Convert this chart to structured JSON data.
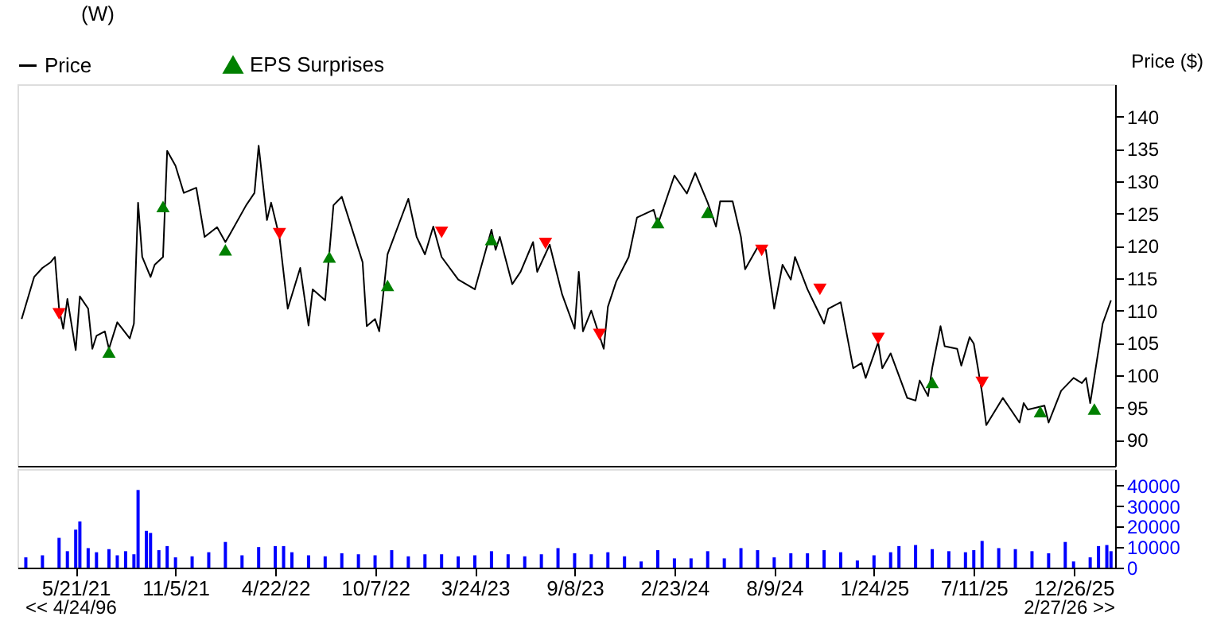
{
  "chart_data": [
    {
      "type": "line",
      "title": "(W)",
      "ylabel": "Price ($)",
      "legend": "top",
      "grid": false,
      "tick_labels": "y",
      "xlim": [
        "2021-02-12",
        "2026-03-06"
      ],
      "ylim": [
        86,
        145
      ],
      "yticks": [
        90,
        95,
        100,
        105,
        110,
        115,
        120,
        125,
        130,
        135,
        140
      ],
      "series": [
        {
          "name": "Price",
          "type": "line",
          "color": "#000000",
          "line_style": "solid",
          "marker": "none",
          "x": [
            "2021-02-19",
            "2021-03-12",
            "2021-03-26",
            "2021-04-09",
            "2021-04-16",
            "2021-04-23",
            "2021-04-30",
            "2021-05-07",
            "2021-05-21",
            "2021-05-28",
            "2021-06-11",
            "2021-06-18",
            "2021-06-25",
            "2021-07-09",
            "2021-07-16",
            "2021-07-30",
            "2021-08-20",
            "2021-08-27",
            "2021-09-03",
            "2021-09-10",
            "2021-09-24",
            "2021-10-01",
            "2021-10-15",
            "2021-10-22",
            "2021-11-05",
            "2021-11-19",
            "2021-12-10",
            "2021-12-24",
            "2022-01-14",
            "2022-01-28",
            "2022-02-04",
            "2022-03-04",
            "2022-03-18",
            "2022-03-25",
            "2022-04-08",
            "2022-04-15",
            "2022-04-29",
            "2022-05-13",
            "2022-06-03",
            "2022-06-17",
            "2022-06-24",
            "2022-07-15",
            "2022-07-29",
            "2022-08-12",
            "2022-09-16",
            "2022-09-23",
            "2022-10-07",
            "2022-10-14",
            "2022-10-28",
            "2022-12-02",
            "2022-12-16",
            "2022-12-30",
            "2023-01-13",
            "2023-01-27",
            "2023-02-24",
            "2023-03-24",
            "2023-04-21",
            "2023-04-28",
            "2023-05-05",
            "2023-05-26",
            "2023-06-09",
            "2023-06-30",
            "2023-07-07",
            "2023-07-28",
            "2023-08-18",
            "2023-09-08",
            "2023-09-15",
            "2023-09-22",
            "2023-10-06",
            "2023-10-27",
            "2023-11-03",
            "2023-11-17",
            "2023-12-08",
            "2023-12-22",
            "2024-01-19",
            "2024-01-26",
            "2024-02-23",
            "2024-03-15",
            "2024-03-29",
            "2024-04-19",
            "2024-05-03",
            "2024-05-10",
            "2024-05-31",
            "2024-06-14",
            "2024-06-21",
            "2024-07-12",
            "2024-07-26",
            "2024-08-09",
            "2024-08-23",
            "2024-09-06",
            "2024-09-13",
            "2024-10-04",
            "2024-11-01",
            "2024-11-08",
            "2024-11-29",
            "2024-12-20",
            "2025-01-03",
            "2025-01-10",
            "2025-01-31",
            "2025-02-07",
            "2025-02-21",
            "2025-03-21",
            "2025-04-04",
            "2025-04-11",
            "2025-04-25",
            "2025-05-02",
            "2025-05-16",
            "2025-05-23",
            "2025-06-13",
            "2025-06-20",
            "2025-07-04",
            "2025-07-11",
            "2025-07-25",
            "2025-08-01",
            "2025-08-29",
            "2025-09-26",
            "2025-10-03",
            "2025-10-10",
            "2025-11-07",
            "2025-11-14",
            "2025-12-05",
            "2025-12-26",
            "2026-01-09",
            "2026-01-16",
            "2026-01-23",
            "2026-02-13",
            "2026-02-27"
          ],
          "values": [
            108.7,
            115.2,
            116.6,
            117.5,
            118.3,
            110.3,
            107.2,
            111.8,
            103.9,
            112.2,
            110.3,
            104.1,
            106.1,
            106.8,
            104.1,
            108.2,
            105.7,
            108.0,
            126.7,
            118.3,
            115.2,
            117.1,
            118.3,
            134.7,
            132.4,
            128.2,
            129.0,
            121.4,
            122.9,
            120.6,
            121.7,
            126.3,
            128.2,
            135.5,
            124.0,
            126.7,
            121.4,
            110.3,
            116.6,
            107.7,
            113.3,
            111.6,
            126.3,
            127.6,
            117.5,
            107.6,
            108.7,
            106.8,
            118.7,
            127.3,
            121.4,
            118.7,
            123.0,
            118.3,
            114.8,
            113.3,
            122.5,
            119.4,
            121.4,
            114.1,
            116.0,
            120.6,
            116.0,
            120.2,
            112.5,
            107.2,
            116.0,
            106.8,
            110.0,
            104.1,
            110.6,
            114.5,
            118.3,
            124.4,
            125.6,
            123.3,
            130.9,
            128.1,
            131.3,
            126.7,
            123.0,
            126.9,
            126.9,
            121.4,
            116.4,
            119.8,
            119.4,
            110.3,
            117.1,
            114.8,
            118.3,
            113.3,
            108.0,
            110.3,
            111.3,
            101.1,
            101.9,
            99.6,
            105.1,
            101.1,
            103.4,
            96.5,
            96.1,
            99.2,
            96.8,
            101.1,
            107.6,
            104.5,
            104.1,
            101.5,
            105.9,
            104.9,
            97.3,
            92.3,
            96.5,
            92.7,
            95.7,
            94.7,
            95.3,
            92.7,
            97.6,
            99.6,
            98.8,
            99.6,
            95.7,
            108.0,
            111.6
          ]
        },
        {
          "name": "EPS Surprises",
          "type": "scatter",
          "color": "#008000",
          "marker": "triangle-up",
          "x": [
            "2021-07-16",
            "2021-10-15",
            "2022-01-28",
            "2022-07-22",
            "2022-10-28",
            "2023-04-21",
            "2024-01-26",
            "2024-04-19",
            "2025-05-02",
            "2025-10-31",
            "2026-01-30"
          ],
          "values": [
            103.6,
            126.1,
            119.4,
            118.3,
            113.9,
            121.0,
            123.6,
            125.2,
            98.9,
            94.4,
            94.8
          ]
        },
        {
          "type": "scatter",
          "color": "#ff0000",
          "marker": "triangle-down",
          "x": [
            "2021-04-23",
            "2022-04-29",
            "2023-01-27",
            "2023-07-21",
            "2023-10-20",
            "2024-07-19",
            "2024-10-25",
            "2025-01-31",
            "2025-07-25"
          ],
          "values": [
            109.5,
            121.9,
            122.1,
            120.4,
            106.3,
            119.3,
            113.3,
            105.7,
            98.9
          ]
        }
      ]
    },
    {
      "type": "bar",
      "grid": false,
      "annotations": [
        "<< 4/24/96",
        "2/27/26 >>"
      ],
      "xlim": [
        "2021-02-12",
        "2026-03-06"
      ],
      "xticks": [
        {
          "value": "2021-05-21",
          "label": "5/21/21"
        },
        {
          "value": "2021-11-05",
          "label": "11/5/21"
        },
        {
          "value": "2022-04-22",
          "label": "4/22/22"
        },
        {
          "value": "2022-10-07",
          "label": "10/7/22"
        },
        {
          "value": "2023-03-24",
          "label": "3/24/23"
        },
        {
          "value": "2023-09-08",
          "label": "9/8/23"
        },
        {
          "value": "2024-02-23",
          "label": "2/23/24"
        },
        {
          "value": "2024-08-09",
          "label": "8/9/24"
        },
        {
          "value": "2025-01-24",
          "label": "1/24/25"
        },
        {
          "value": "2025-07-11",
          "label": "7/11/25"
        },
        {
          "value": "2025-12-26",
          "label": "12/26/25"
        }
      ],
      "ylim": [
        0,
        48000
      ],
      "yticks": [
        0,
        10000,
        20000,
        30000,
        40000
      ],
      "series": [
        {
          "color": "#0000ff",
          "x": [
            "2021-02-26",
            "2021-03-26",
            "2021-04-23",
            "2021-05-07",
            "2021-05-21",
            "2021-05-28",
            "2021-06-11",
            "2021-06-25",
            "2021-07-16",
            "2021-07-30",
            "2021-08-13",
            "2021-08-27",
            "2021-09-03",
            "2021-09-17",
            "2021-09-24",
            "2021-10-08",
            "2021-10-22",
            "2021-11-05",
            "2021-12-03",
            "2021-12-31",
            "2022-01-28",
            "2022-02-25",
            "2022-03-25",
            "2022-04-22",
            "2022-05-06",
            "2022-05-20",
            "2022-06-17",
            "2022-07-15",
            "2022-08-12",
            "2022-09-09",
            "2022-10-07",
            "2022-11-04",
            "2022-12-02",
            "2022-12-30",
            "2023-01-27",
            "2023-02-24",
            "2023-03-24",
            "2023-04-21",
            "2023-05-19",
            "2023-06-16",
            "2023-07-14",
            "2023-08-11",
            "2023-09-08",
            "2023-10-06",
            "2023-11-03",
            "2023-12-01",
            "2023-12-29",
            "2024-01-26",
            "2024-02-23",
            "2024-03-22",
            "2024-04-19",
            "2024-05-17",
            "2024-06-14",
            "2024-07-12",
            "2024-08-09",
            "2024-09-06",
            "2024-10-04",
            "2024-11-01",
            "2024-11-29",
            "2024-12-27",
            "2025-01-24",
            "2025-02-21",
            "2025-03-07",
            "2025-04-04",
            "2025-05-02",
            "2025-05-30",
            "2025-06-27",
            "2025-07-11",
            "2025-07-25",
            "2025-08-22",
            "2025-09-19",
            "2025-10-17",
            "2025-11-14",
            "2025-12-12",
            "2025-12-26",
            "2026-01-23",
            "2026-02-06",
            "2026-02-20",
            "2026-02-27"
          ],
          "values": [
            5000,
            6000,
            14500,
            8000,
            18500,
            22500,
            9500,
            7500,
            9000,
            6000,
            8000,
            6500,
            37800,
            17900,
            16900,
            8500,
            10500,
            5000,
            5500,
            7500,
            12500,
            6000,
            10000,
            10500,
            10500,
            7500,
            6000,
            5500,
            7000,
            6500,
            6000,
            8500,
            5500,
            6500,
            6500,
            5500,
            6000,
            8000,
            6500,
            5500,
            6500,
            9500,
            7000,
            6500,
            7500,
            5500,
            3000,
            8500,
            4500,
            4500,
            8000,
            4500,
            9500,
            8500,
            5000,
            7000,
            7000,
            8500,
            7500,
            3500,
            6000,
            7500,
            10500,
            11000,
            9000,
            8000,
            7500,
            8500,
            13000,
            9500,
            9000,
            8000,
            7000,
            12500,
            3000,
            5000,
            10500,
            11000,
            8000
          ]
        }
      ]
    }
  ]
}
